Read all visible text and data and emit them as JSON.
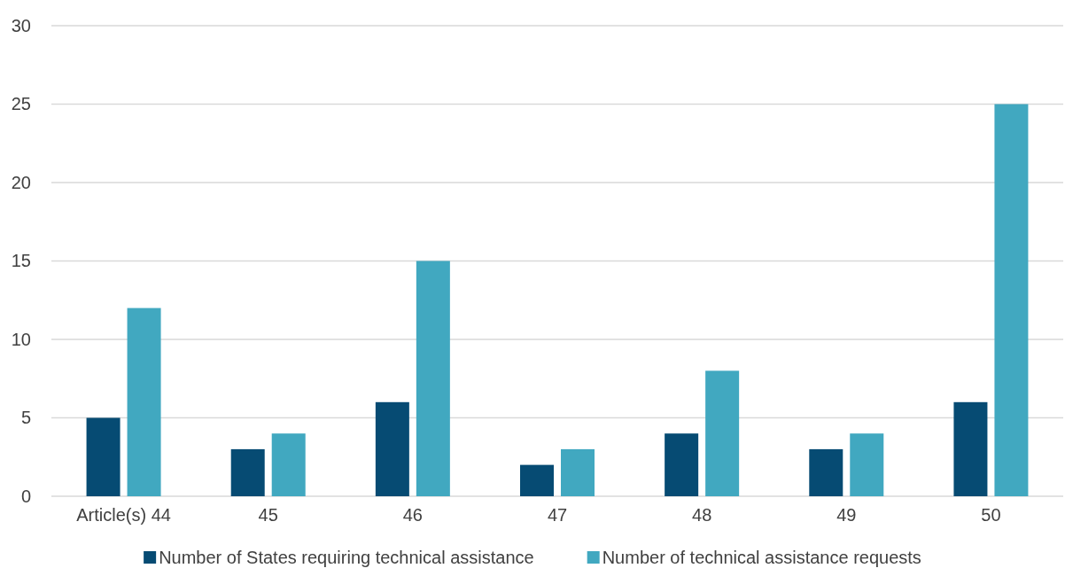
{
  "chart_data": {
    "type": "bar",
    "categories": [
      "Article(s) 44",
      "45",
      "46",
      "47",
      "48",
      "49",
      "50"
    ],
    "series": [
      {
        "name": "Number of States requiring technical assistance",
        "color": "#064b73",
        "values": [
          5,
          3,
          6,
          2,
          4,
          3,
          6
        ]
      },
      {
        "name": "Number of technical assistance requests",
        "color": "#41a8c0",
        "values": [
          12,
          4,
          15,
          3,
          8,
          4,
          25
        ]
      }
    ],
    "ylim": [
      0,
      30
    ],
    "yticks": [
      0,
      5,
      10,
      15,
      20,
      25,
      30
    ],
    "grid": "y",
    "legend": "bottom"
  }
}
